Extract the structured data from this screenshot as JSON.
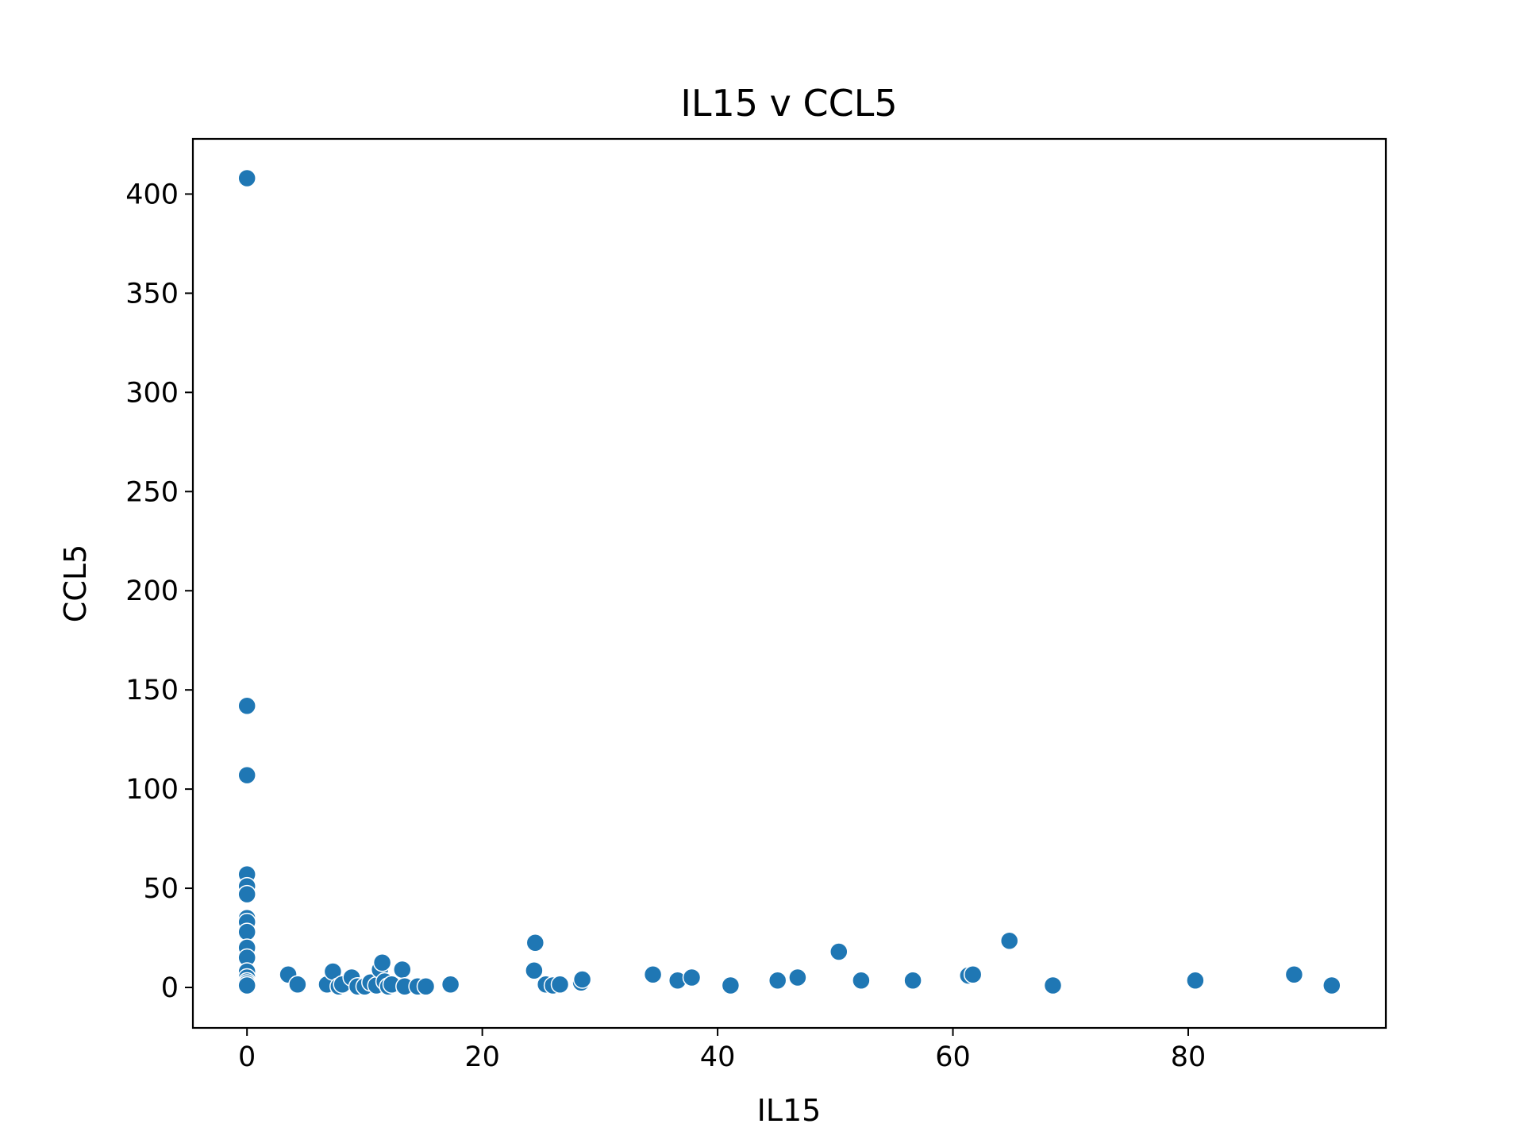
{
  "chart_data": {
    "type": "scatter",
    "title": "IL15 v CCL5",
    "xlabel": "IL15",
    "ylabel": "CCL5",
    "xlim": [
      -4.6,
      96.8
    ],
    "ylim": [
      -20.4,
      427.8
    ],
    "xticks": [
      0,
      20,
      40,
      60,
      80
    ],
    "yticks": [
      0,
      50,
      100,
      150,
      200,
      250,
      300,
      350,
      400
    ],
    "grid": false,
    "legend": "none",
    "colors": {
      "point": "#1f77b4",
      "point_edge": "#ffffff",
      "axes": "#000000",
      "background": "#ffffff"
    },
    "points": [
      [
        0,
        408
      ],
      [
        0,
        142
      ],
      [
        0,
        107
      ],
      [
        0,
        57
      ],
      [
        0,
        51
      ],
      [
        0,
        47
      ],
      [
        0,
        35
      ],
      [
        0,
        33
      ],
      [
        0,
        28
      ],
      [
        0,
        20
      ],
      [
        0,
        15
      ],
      [
        0,
        8
      ],
      [
        0,
        5
      ],
      [
        0,
        3
      ],
      [
        0,
        2
      ],
      [
        0,
        1
      ],
      [
        3.5,
        6.5
      ],
      [
        4.3,
        1.5
      ],
      [
        6.8,
        1.5
      ],
      [
        7.3,
        8
      ],
      [
        7.8,
        0.5
      ],
      [
        8.1,
        1.5
      ],
      [
        8.9,
        5
      ],
      [
        9.4,
        0.5
      ],
      [
        10.0,
        0.5
      ],
      [
        10.5,
        2.5
      ],
      [
        11.0,
        1
      ],
      [
        11.3,
        9
      ],
      [
        11.5,
        12.5
      ],
      [
        11.7,
        3
      ],
      [
        12.0,
        0.5
      ],
      [
        12.3,
        1.5
      ],
      [
        13.2,
        9
      ],
      [
        13.4,
        0.5
      ],
      [
        14.5,
        0.5
      ],
      [
        15.2,
        0.5
      ],
      [
        17.3,
        1.5
      ],
      [
        24.4,
        8.5
      ],
      [
        24.5,
        22.5
      ],
      [
        25.4,
        1.5
      ],
      [
        26.0,
        1
      ],
      [
        26.6,
        1.5
      ],
      [
        28.4,
        2.5
      ],
      [
        28.5,
        4
      ],
      [
        34.5,
        6.5
      ],
      [
        36.6,
        3.5
      ],
      [
        37.8,
        5
      ],
      [
        41.1,
        1
      ],
      [
        45.1,
        3.5
      ],
      [
        46.8,
        5
      ],
      [
        50.3,
        18
      ],
      [
        52.2,
        3.5
      ],
      [
        56.6,
        3.5
      ],
      [
        61.3,
        6
      ],
      [
        61.7,
        6.5
      ],
      [
        64.8,
        23.5
      ],
      [
        68.5,
        1
      ],
      [
        80.6,
        3.5
      ],
      [
        89.0,
        6.5
      ],
      [
        92.2,
        1
      ]
    ]
  }
}
